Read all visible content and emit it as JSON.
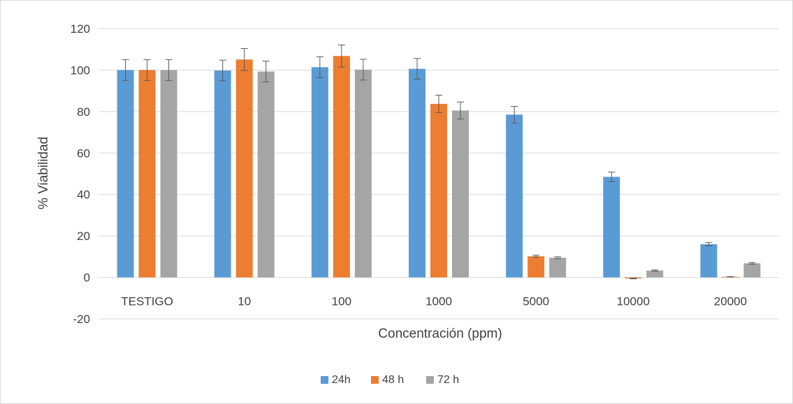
{
  "chart_data": {
    "type": "bar",
    "title": "",
    "xlabel": "Concentración (ppm)",
    "ylabel": "% Viabilidad",
    "ylim": [
      -20,
      120
    ],
    "yticks": [
      -20,
      0,
      20,
      40,
      60,
      80,
      100,
      120
    ],
    "grid": true,
    "legend_position": "bottom",
    "categories": [
      "TESTIGO",
      "10",
      "100",
      "1000",
      "5000",
      "10000",
      "20000"
    ],
    "series": [
      {
        "name": "24h",
        "color": "#5b9bd5",
        "values": [
          100,
          99.8,
          101.4,
          100.6,
          78.5,
          48.5,
          16
        ],
        "errors": [
          5,
          5,
          5,
          5,
          4,
          2.3,
          0.8
        ]
      },
      {
        "name": "48 h",
        "color": "#ed7d31",
        "values": [
          100,
          105.1,
          106.8,
          83.7,
          10.2,
          -0.5,
          0.3
        ],
        "errors": [
          5,
          5.3,
          5.3,
          4.2,
          0.5,
          0.2,
          0.1
        ]
      },
      {
        "name": "72 h",
        "color": "#a5a5a5",
        "values": [
          100,
          99.3,
          100.2,
          80.5,
          9.5,
          3.3,
          6.8
        ],
        "errors": [
          5,
          5,
          5,
          4.1,
          0.5,
          0.3,
          0.4
        ]
      }
    ]
  }
}
